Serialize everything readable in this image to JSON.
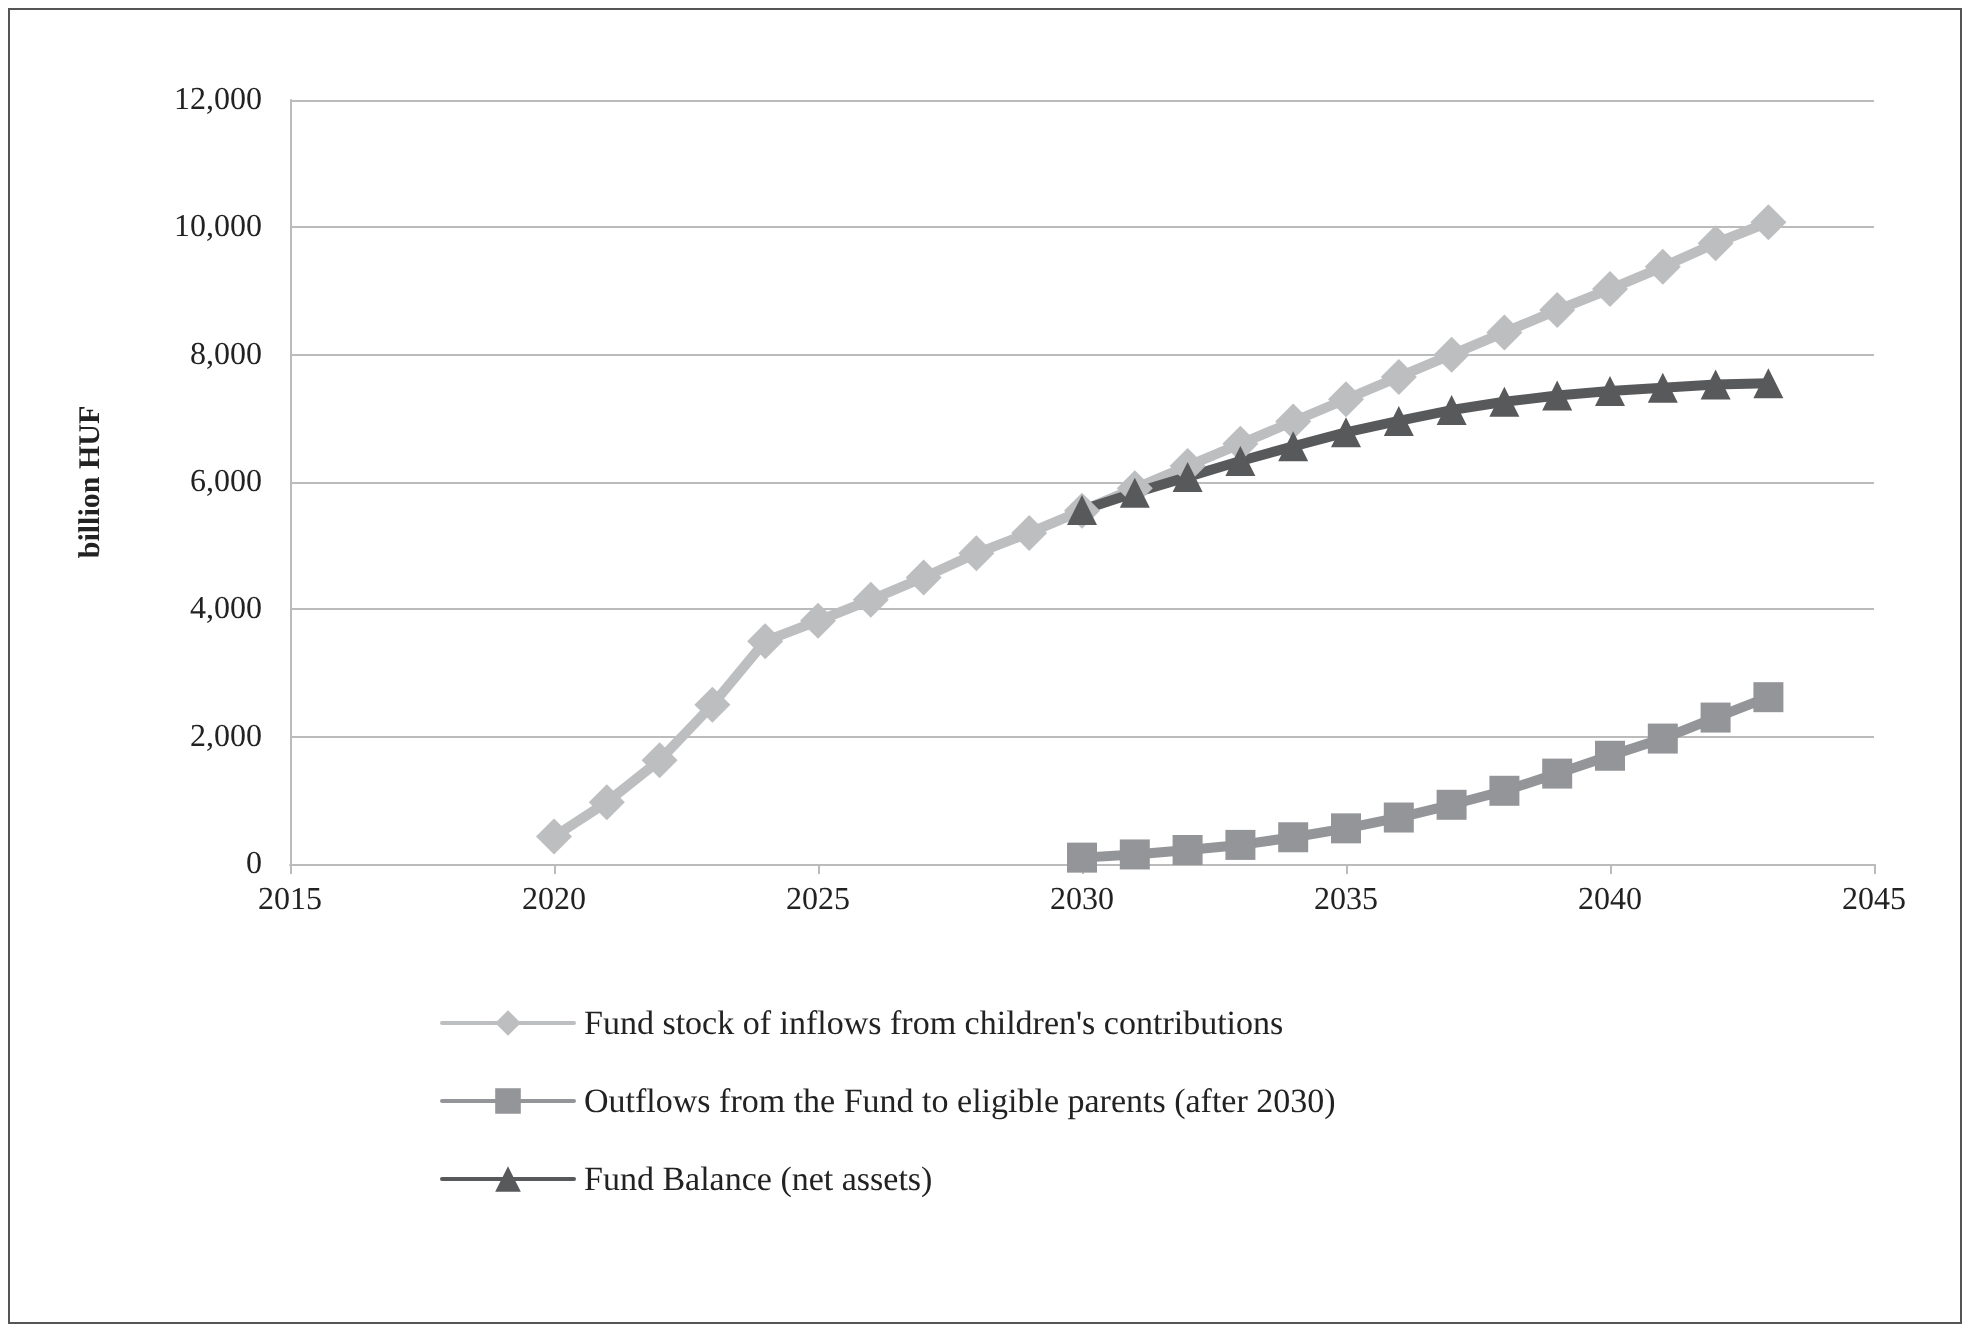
{
  "chart_data": {
    "type": "line",
    "ylabel": "billion HUF",
    "xlim": [
      2015,
      2045
    ],
    "xticks": [
      2015,
      2020,
      2025,
      2030,
      2035,
      2040,
      2045
    ],
    "ylim": [
      0,
      12000
    ],
    "yticks": [
      {
        "value": 0,
        "label": "0"
      },
      {
        "value": 2000,
        "label": "2,000"
      },
      {
        "value": 4000,
        "label": "4,000"
      },
      {
        "value": 6000,
        "label": "6,000"
      },
      {
        "value": 8000,
        "label": "8,000"
      },
      {
        "value": 10000,
        "label": "10,000"
      },
      {
        "value": 12000,
        "label": "12,000"
      }
    ],
    "grid": "y",
    "legend": "bottom",
    "line_style": "solid",
    "series": [
      {
        "name": "Fund stock of inflows from children's contributions",
        "color": "#bdbec0",
        "marker": "diamond",
        "x": [
          2020,
          2021,
          2022,
          2023,
          2024,
          2025,
          2026,
          2027,
          2028,
          2029,
          2030,
          2031,
          2032,
          2033,
          2034,
          2035,
          2036,
          2037,
          2038,
          2039,
          2040,
          2041,
          2042,
          2043
        ],
        "values": [
          430,
          970,
          1630,
          2500,
          3500,
          3820,
          4150,
          4500,
          4880,
          5200,
          5550,
          5900,
          6250,
          6600,
          6950,
          7300,
          7650,
          8000,
          8350,
          8700,
          9030,
          9380,
          9750,
          10080
        ]
      },
      {
        "name": "Outflows from the Fund to eligible parents (after 2030)",
        "color": "#939598",
        "marker": "square",
        "x": [
          2030,
          2031,
          2032,
          2033,
          2034,
          2035,
          2036,
          2037,
          2038,
          2039,
          2040,
          2041,
          2042,
          2043
        ],
        "values": [
          100,
          150,
          220,
          300,
          420,
          560,
          730,
          930,
          1150,
          1420,
          1700,
          1970,
          2300,
          2620
        ]
      },
      {
        "name": "Fund Balance (net assets)",
        "color": "#58595b",
        "marker": "triangle",
        "x": [
          2030,
          2031,
          2032,
          2033,
          2034,
          2035,
          2036,
          2037,
          2038,
          2039,
          2040,
          2041,
          2042,
          2043
        ],
        "values": [
          5560,
          5830,
          6080,
          6330,
          6560,
          6780,
          6960,
          7130,
          7260,
          7360,
          7430,
          7480,
          7530,
          7550
        ]
      }
    ]
  }
}
